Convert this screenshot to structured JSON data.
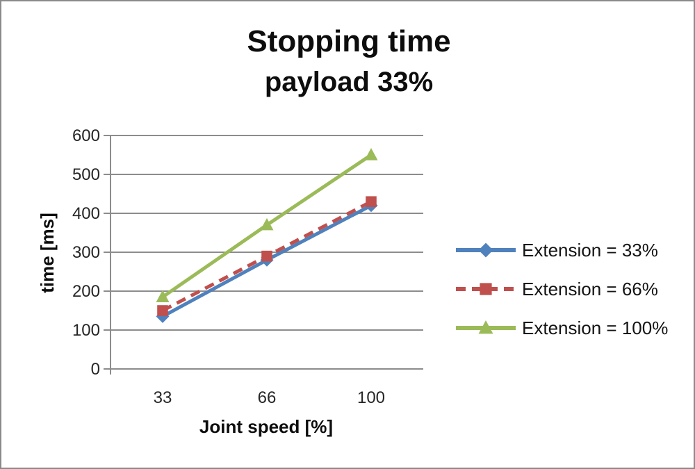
{
  "chart_data": {
    "type": "line",
    "title": "Stopping time",
    "subtitle": "payload 33%",
    "xlabel": "Joint speed [%]",
    "ylabel": "time [ms]",
    "categories": [
      "33",
      "66",
      "100"
    ],
    "y_ticks": [
      0,
      100,
      200,
      300,
      400,
      500,
      600
    ],
    "ylim": [
      0,
      600
    ],
    "grid": true,
    "legend_position": "right",
    "series": [
      {
        "name": "Extension = 33%",
        "values": [
          135,
          280,
          420
        ],
        "color": "#4f81bd",
        "line_style": "solid",
        "marker": "diamond-marker-icon"
      },
      {
        "name": "Extension = 66%",
        "values": [
          150,
          290,
          430
        ],
        "color": "#c0504d",
        "line_style": "dashed",
        "marker": "square-marker-icon"
      },
      {
        "name": "Extension = 100%",
        "values": [
          185,
          370,
          550
        ],
        "color": "#9bbb59",
        "line_style": "solid",
        "marker": "triangle-marker-icon"
      }
    ],
    "colors": {
      "axis_and_grid": "#8c8c8c",
      "tick_text": "#262626",
      "title_text": "#0d0d0d"
    }
  }
}
